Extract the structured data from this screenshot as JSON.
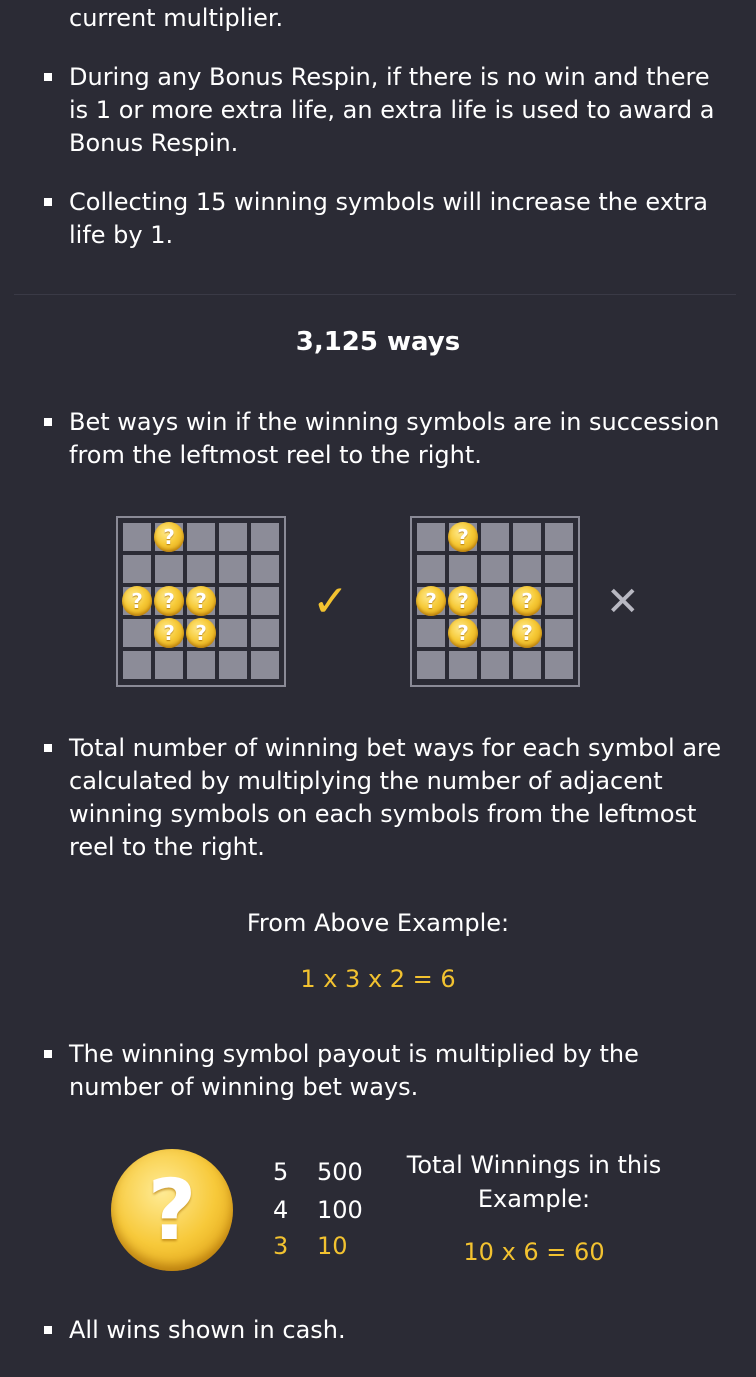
{
  "paragraphs": {
    "p0_tail": "current multiplier.",
    "p1": "During any Bonus Respin, if there is no win and there is 1 or more extra life, an extra life is used to award a Bonus Respin.",
    "p2": "Collecting 15 winning symbols will increase the extra life by 1.",
    "p3": "Bet ways win if the winning symbols are in succession from the leftmost reel to the right.",
    "p4": "Total number of winning bet ways for each symbol are calculated by multiplying the number of adjacent winning symbols on each symbols from the leftmost reel to the right.",
    "p5": "The winning symbol payout is multiplied by the number of winning bet ways.",
    "p6": "All wins shown in cash."
  },
  "section_title": "3,125 ways",
  "example": {
    "heading": "From Above Example:",
    "formula": "1 x 3 x 2 = 6"
  },
  "diagram": {
    "coin_glyph": "?",
    "valid_mark": "✓",
    "invalid_mark": "✕",
    "valid_icon": "checkmark-icon",
    "invalid_icon": "cross-icon"
  },
  "paytable": {
    "counts": [
      "5",
      "4",
      "3"
    ],
    "payouts": [
      "500",
      "100",
      "10"
    ],
    "highlight_index": 2
  },
  "total": {
    "label": "Total Winnings in this Example:",
    "formula": "10 x 6 = 60"
  },
  "colors": {
    "background": "#2b2b35",
    "accent": "#f2c230",
    "cell": "#8c8c98"
  }
}
